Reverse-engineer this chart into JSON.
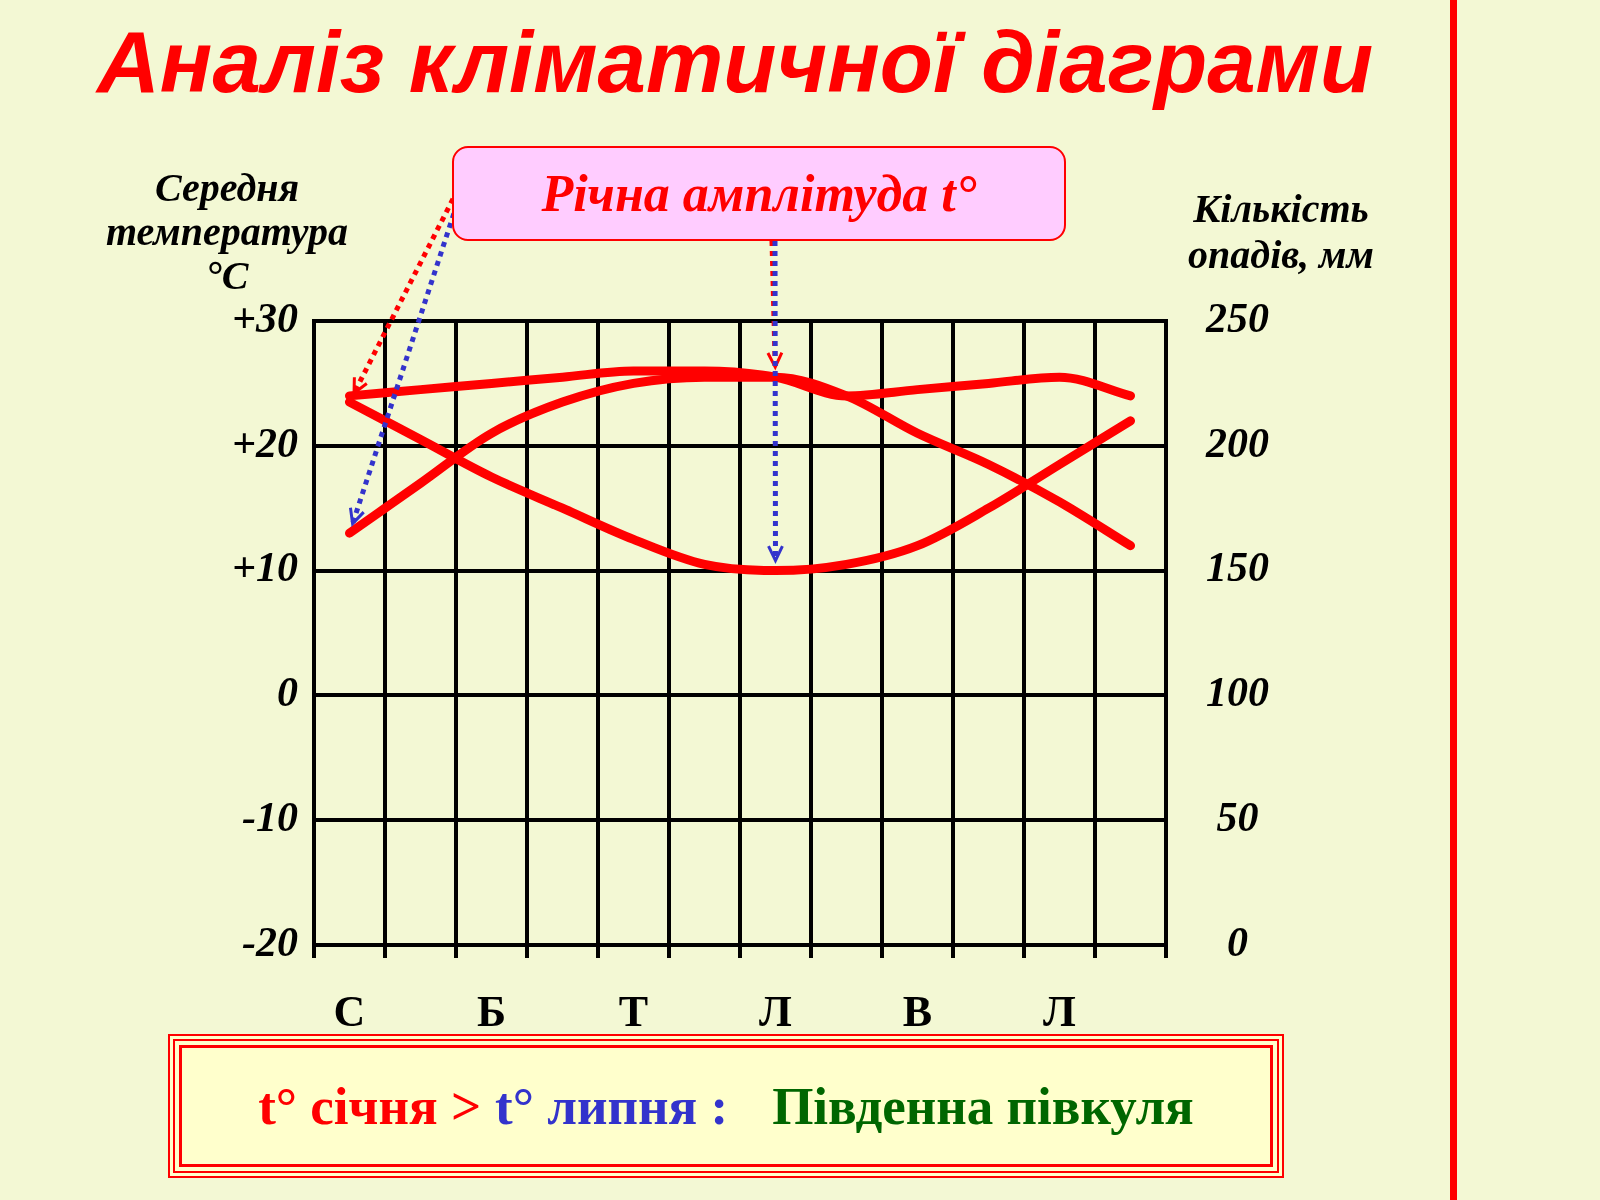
{
  "chart_data": {
    "type": "line",
    "title": "Аналіз кліматичної діаграми",
    "ylabel": "Середня температура °C",
    "y2label": "Кількість опадів, мм",
    "categories": [
      "С",
      null,
      "Б",
      null,
      "Т",
      null,
      "Л",
      null,
      "В",
      null,
      "Л",
      null
    ],
    "series": [
      {
        "color": "#ff0000",
        "values": [
          23.5,
          20.5,
          17.5,
          15,
          12.5,
          10.5,
          10,
          10.5,
          12,
          15,
          18.5,
          22
        ]
      },
      {
        "color": "#ff0000",
        "values": [
          13,
          17,
          21,
          23.5,
          25,
          25.5,
          25.5,
          24,
          21,
          18.5,
          15.5,
          12
        ]
      },
      {
        "color": "#ff0000",
        "values": [
          24,
          24.5,
          25,
          25.5,
          26,
          26,
          25.5,
          24,
          24.5,
          25,
          25.5,
          24
        ]
      }
    ],
    "ylim": [
      -20,
      30
    ],
    "yticks": [
      -20,
      -10,
      0,
      {
        "value": 10,
        "label": "+10"
      },
      {
        "value": 20,
        "label": "+20"
      },
      {
        "value": 30,
        "label": "+30"
      }
    ],
    "y2lim": [
      0,
      250
    ],
    "y2ticks": [
      0,
      50,
      100,
      150,
      200,
      250
    ],
    "grid": true,
    "annotations": [
      "Річна амплітуда t°",
      "t° січня >",
      "t° липня :",
      "Південна півкуля"
    ]
  }
}
